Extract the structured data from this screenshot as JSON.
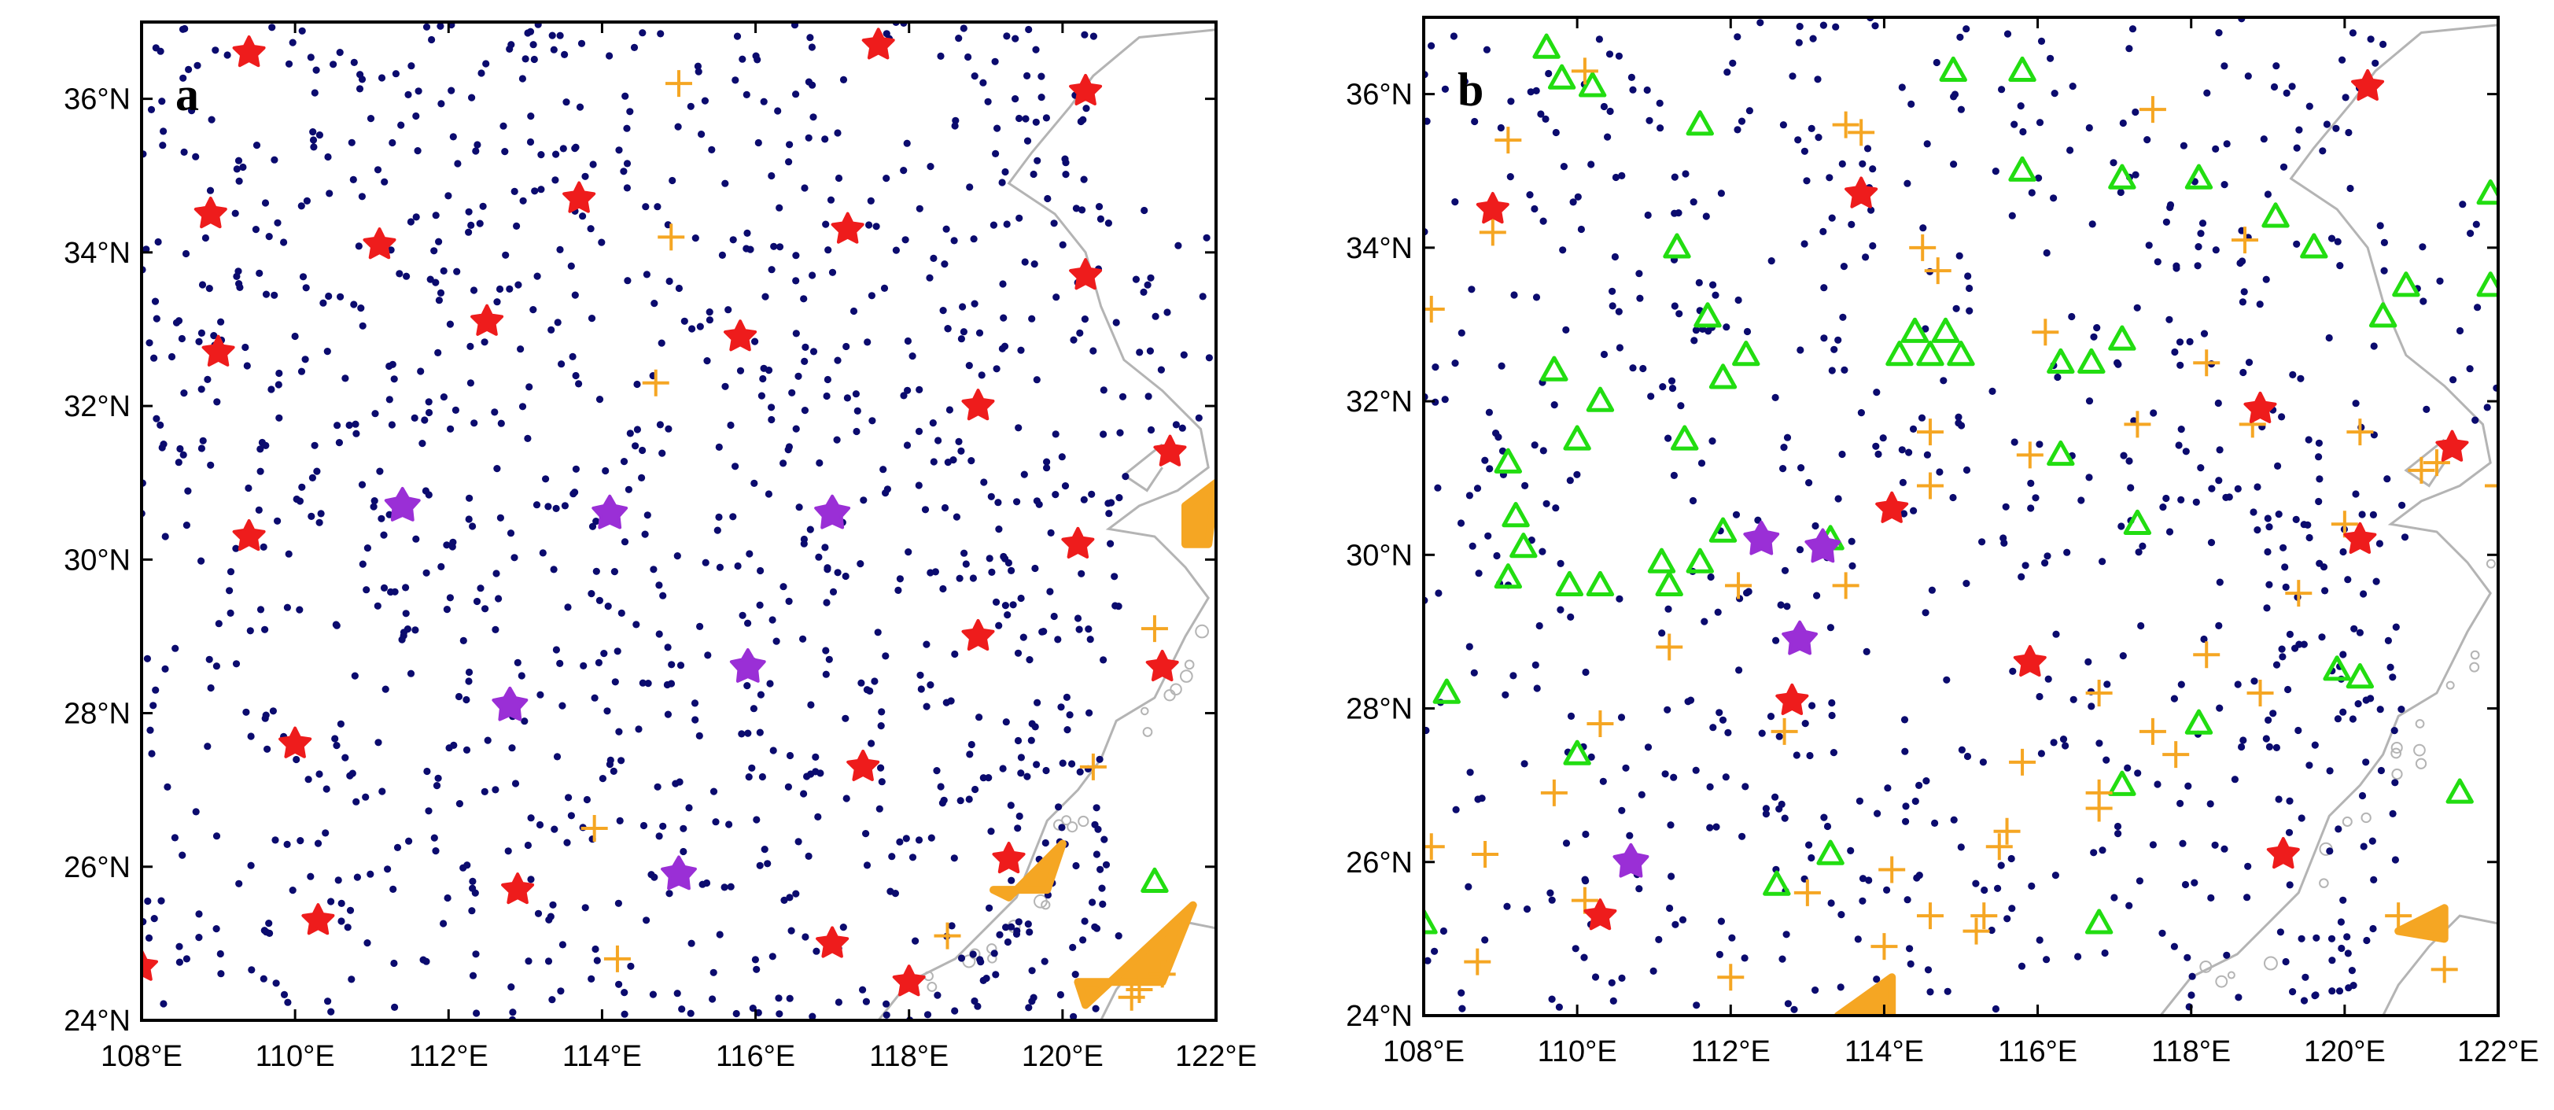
{
  "figure": {
    "colors": {
      "dots": "#0b0b6e",
      "red_star": "#ee1c1c",
      "purple_star": "#9a2fd6",
      "orange_plus": "#f5a623",
      "green_triangle": "#22dd11",
      "coast": "#b4b4b4",
      "frame": "#000000"
    },
    "axes": {
      "lon_range": [
        108,
        122
      ],
      "lat_range": [
        24,
        37
      ],
      "x_ticks": [
        108,
        110,
        112,
        114,
        116,
        118,
        120,
        122
      ],
      "y_ticks": [
        24,
        26,
        28,
        30,
        32,
        34,
        36
      ],
      "x_tick_labels": [
        "108°E",
        "110°E",
        "112°E",
        "114°E",
        "116°E",
        "118°E",
        "120°E",
        "122°E"
      ],
      "y_tick_labels": [
        "24°N",
        "26°N",
        "28°N",
        "30°N",
        "32°N",
        "34°N",
        "36°N"
      ]
    },
    "panels": [
      {
        "id": "a",
        "label": "a",
        "red_stars": [
          [
            109.4,
            36.6
          ],
          [
            117.6,
            36.7
          ],
          [
            120.3,
            36.1
          ],
          [
            108.9,
            34.5
          ],
          [
            111.1,
            34.1
          ],
          [
            113.7,
            34.7
          ],
          [
            117.2,
            34.3
          ],
          [
            120.3,
            33.7
          ],
          [
            109.0,
            32.7
          ],
          [
            112.5,
            33.1
          ],
          [
            115.8,
            32.9
          ],
          [
            118.9,
            32.0
          ],
          [
            121.4,
            31.4
          ],
          [
            109.4,
            30.3
          ],
          [
            120.2,
            30.2
          ],
          [
            118.9,
            29.0
          ],
          [
            121.3,
            28.6
          ],
          [
            110.0,
            27.6
          ],
          [
            117.4,
            27.3
          ],
          [
            112.9,
            25.7
          ],
          [
            119.3,
            26.1
          ],
          [
            110.3,
            25.3
          ],
          [
            117.0,
            25.0
          ],
          [
            108.0,
            24.7
          ],
          [
            118.0,
            24.5
          ]
        ],
        "purple_stars": [
          [
            111.4,
            30.7
          ],
          [
            114.1,
            30.6
          ],
          [
            117.0,
            30.6
          ],
          [
            115.9,
            28.6
          ],
          [
            112.8,
            28.1
          ],
          [
            115.0,
            25.9
          ]
        ],
        "orange_plus": [
          [
            115.0,
            36.2
          ],
          [
            114.9,
            34.2
          ],
          [
            114.7,
            32.3
          ],
          [
            121.2,
            29.1
          ],
          [
            120.4,
            27.3
          ],
          [
            113.9,
            26.5
          ],
          [
            118.5,
            25.1
          ],
          [
            114.2,
            24.8
          ],
          [
            121.0,
            24.4
          ],
          [
            121.3,
            24.6
          ],
          [
            120.9,
            24.3
          ]
        ],
        "green_triangles": [
          [
            121.2,
            25.8
          ]
        ],
        "orange_clusters": [
          [
            [
              121.6,
              30.7
            ],
            [
              122.0,
              31.0
            ],
            [
              121.9,
              30.2
            ],
            [
              121.6,
              30.2
            ]
          ],
          [
            [
              119.3,
              25.6
            ],
            [
              120.0,
              26.3
            ],
            [
              119.8,
              25.7
            ],
            [
              119.1,
              25.7
            ]
          ],
          [
            [
              120.3,
              24.2
            ],
            [
              121.7,
              25.5
            ],
            [
              121.3,
              24.5
            ],
            [
              120.2,
              24.5
            ]
          ]
        ]
      },
      {
        "id": "b",
        "label": "b",
        "red_stars": [
          [
            120.3,
            36.1
          ],
          [
            108.9,
            34.5
          ],
          [
            113.7,
            34.7
          ],
          [
            118.9,
            31.9
          ],
          [
            121.4,
            31.4
          ],
          [
            120.2,
            30.2
          ],
          [
            114.1,
            30.6
          ],
          [
            115.9,
            28.6
          ],
          [
            112.8,
            28.1
          ],
          [
            119.2,
            26.1
          ],
          [
            110.3,
            25.3
          ]
        ],
        "purple_stars": [
          [
            112.4,
            30.2
          ],
          [
            113.2,
            30.1
          ],
          [
            112.9,
            28.9
          ],
          [
            110.7,
            26.0
          ]
        ],
        "orange_plus": [
          [
            110.1,
            36.3
          ],
          [
            109.1,
            35.4
          ],
          [
            113.5,
            35.6
          ],
          [
            113.7,
            35.5
          ],
          [
            117.5,
            35.8
          ],
          [
            108.1,
            33.2
          ],
          [
            108.9,
            34.2
          ],
          [
            114.5,
            34.0
          ],
          [
            114.7,
            33.7
          ],
          [
            118.7,
            34.1
          ],
          [
            116.1,
            32.9
          ],
          [
            118.2,
            32.5
          ],
          [
            114.6,
            31.6
          ],
          [
            115.9,
            31.3
          ],
          [
            117.3,
            31.7
          ],
          [
            118.8,
            31.7
          ],
          [
            120.2,
            31.6
          ],
          [
            121.0,
            31.1
          ],
          [
            121.2,
            31.2
          ],
          [
            122.0,
            30.9
          ],
          [
            114.6,
            30.9
          ],
          [
            120.0,
            30.4
          ],
          [
            112.1,
            29.6
          ],
          [
            113.5,
            29.6
          ],
          [
            119.4,
            29.5
          ],
          [
            111.2,
            28.8
          ],
          [
            118.2,
            28.7
          ],
          [
            116.8,
            28.2
          ],
          [
            118.9,
            28.2
          ],
          [
            110.3,
            27.8
          ],
          [
            112.7,
            27.7
          ],
          [
            115.8,
            27.3
          ],
          [
            117.5,
            27.7
          ],
          [
            117.8,
            27.4
          ],
          [
            109.7,
            26.9
          ],
          [
            116.8,
            26.9
          ],
          [
            116.8,
            26.7
          ],
          [
            115.5,
            26.2
          ],
          [
            115.6,
            26.4
          ],
          [
            108.1,
            26.2
          ],
          [
            108.8,
            26.1
          ],
          [
            110.1,
            25.5
          ],
          [
            113.0,
            25.6
          ],
          [
            114.1,
            25.9
          ],
          [
            114.6,
            25.3
          ],
          [
            115.2,
            25.1
          ],
          [
            115.3,
            25.3
          ],
          [
            108.7,
            24.7
          ],
          [
            112.0,
            24.5
          ],
          [
            114.0,
            24.9
          ],
          [
            120.7,
            25.3
          ],
          [
            121.3,
            24.6
          ]
        ],
        "green_triangles": [
          [
            109.6,
            36.6
          ],
          [
            109.8,
            36.2
          ],
          [
            110.2,
            36.1
          ],
          [
            114.9,
            36.3
          ],
          [
            115.8,
            36.3
          ],
          [
            111.6,
            35.6
          ],
          [
            115.8,
            35.0
          ],
          [
            117.1,
            34.9
          ],
          [
            118.1,
            34.9
          ],
          [
            119.1,
            34.4
          ],
          [
            119.6,
            34.0
          ],
          [
            120.8,
            33.5
          ],
          [
            121.9,
            33.5
          ],
          [
            121.9,
            34.7
          ],
          [
            120.5,
            33.1
          ],
          [
            111.3,
            34.0
          ],
          [
            111.7,
            33.1
          ],
          [
            112.2,
            32.6
          ],
          [
            111.9,
            32.3
          ],
          [
            110.3,
            32.0
          ],
          [
            110.0,
            31.5
          ],
          [
            109.7,
            32.4
          ],
          [
            111.4,
            31.5
          ],
          [
            109.1,
            31.2
          ],
          [
            109.2,
            30.5
          ],
          [
            109.3,
            30.1
          ],
          [
            109.1,
            29.7
          ],
          [
            109.9,
            29.6
          ],
          [
            110.3,
            29.6
          ],
          [
            111.1,
            29.9
          ],
          [
            111.2,
            29.6
          ],
          [
            111.6,
            29.9
          ],
          [
            111.9,
            30.3
          ],
          [
            113.3,
            30.2
          ],
          [
            114.4,
            32.9
          ],
          [
            114.8,
            32.9
          ],
          [
            114.2,
            32.6
          ],
          [
            114.6,
            32.6
          ],
          [
            115.0,
            32.6
          ],
          [
            116.3,
            32.5
          ],
          [
            116.7,
            32.5
          ],
          [
            117.1,
            32.8
          ],
          [
            116.3,
            31.3
          ],
          [
            117.3,
            30.4
          ],
          [
            119.9,
            28.5
          ],
          [
            120.2,
            28.4
          ],
          [
            108.3,
            28.2
          ],
          [
            110.0,
            27.4
          ],
          [
            118.1,
            27.8
          ],
          [
            117.1,
            27.0
          ],
          [
            121.5,
            26.9
          ],
          [
            113.3,
            26.1
          ],
          [
            112.6,
            25.7
          ],
          [
            116.8,
            25.2
          ],
          [
            108.0,
            25.2
          ]
        ],
        "orange_clusters": [
          [
            [
              113.4,
              24.0
            ],
            [
              114.1,
              24.5
            ],
            [
              114.1,
              24.0
            ]
          ],
          [
            [
              120.7,
              25.1
            ],
            [
              121.3,
              25.4
            ],
            [
              121.3,
              25.0
            ]
          ]
        ]
      }
    ]
  }
}
